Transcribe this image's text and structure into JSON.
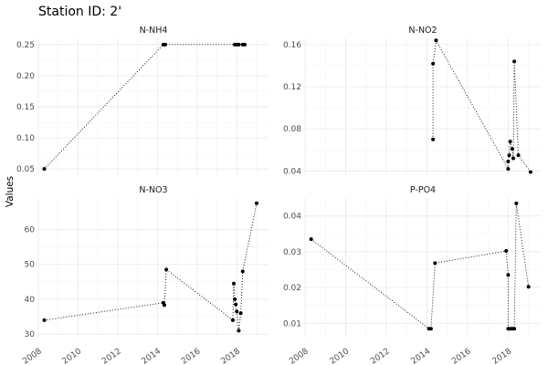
{
  "title": "Station ID: 2'",
  "chart_data": [
    {
      "type": "line",
      "title": "N-NH4",
      "ylabel": "Values",
      "xlim": [
        2008,
        2019.6
      ],
      "ylim": [
        0.04,
        0.26
      ],
      "yticks": [
        0.05,
        0.1,
        0.15,
        0.2,
        0.25
      ],
      "ytick_labels": [
        "0.05",
        "0.10",
        "0.15",
        "0.20",
        "0.25"
      ],
      "grid": true,
      "points": [
        [
          2008.3,
          0.05
        ],
        [
          2014.3,
          0.25
        ],
        [
          2014.4,
          0.25
        ],
        [
          2017.9,
          0.25
        ],
        [
          2018.0,
          0.25
        ],
        [
          2018.1,
          0.25
        ],
        [
          2018.3,
          0.25
        ],
        [
          2018.4,
          0.25
        ]
      ]
    },
    {
      "type": "line",
      "title": "N-NO2",
      "xlim": [
        2008,
        2019.6
      ],
      "ylim": [
        0.036,
        0.166
      ],
      "yticks": [
        0.04,
        0.08,
        0.12,
        0.16
      ],
      "ytick_labels": [
        "0.04",
        "0.08",
        "0.12",
        "0.16"
      ],
      "grid": true,
      "points": [
        [
          2014.3,
          0.07
        ],
        [
          2014.3,
          0.142
        ],
        [
          2014.45,
          0.164
        ],
        [
          2018.0,
          0.042
        ],
        [
          2018.0,
          0.049
        ],
        [
          2018.05,
          0.055
        ],
        [
          2018.1,
          0.068
        ],
        [
          2018.2,
          0.061
        ],
        [
          2018.25,
          0.052
        ],
        [
          2018.3,
          0.144
        ],
        [
          2018.5,
          0.055
        ],
        [
          2019.1,
          0.039
        ]
      ]
    },
    {
      "type": "line",
      "title": "N-NO3",
      "xlim": [
        2008,
        2019.6
      ],
      "ylim": [
        29,
        69
      ],
      "yticks": [
        30,
        40,
        50,
        60
      ],
      "ytick_labels": [
        "30",
        "40",
        "50",
        "60"
      ],
      "grid": true,
      "points": [
        [
          2008.3,
          34
        ],
        [
          2014.3,
          39
        ],
        [
          2014.35,
          38.3
        ],
        [
          2014.45,
          48.5
        ],
        [
          2017.8,
          34
        ],
        [
          2017.85,
          44.5
        ],
        [
          2017.9,
          40
        ],
        [
          2017.95,
          38.5
        ],
        [
          2018.0,
          36.5
        ],
        [
          2018.1,
          31
        ],
        [
          2018.2,
          36
        ],
        [
          2018.3,
          48
        ],
        [
          2019.0,
          67.5
        ]
      ]
    },
    {
      "type": "line",
      "title": "P-PO4",
      "xlim": [
        2008,
        2019.6
      ],
      "ylim": [
        0.006,
        0.045
      ],
      "yticks": [
        0.01,
        0.02,
        0.03,
        0.04
      ],
      "ytick_labels": [
        "0.01",
        "0.02",
        "0.03",
        "0.04"
      ],
      "grid": true,
      "points": [
        [
          2008.3,
          0.0335
        ],
        [
          2014.1,
          0.0085
        ],
        [
          2014.2,
          0.0085
        ],
        [
          2014.4,
          0.0268
        ],
        [
          2017.9,
          0.0302
        ],
        [
          2018.0,
          0.0235
        ],
        [
          2018.0,
          0.0085
        ],
        [
          2018.1,
          0.0085
        ],
        [
          2018.2,
          0.0085
        ],
        [
          2018.3,
          0.0085
        ],
        [
          2018.4,
          0.0435
        ],
        [
          2019.0,
          0.0202
        ]
      ]
    }
  ],
  "xticks": [
    2008,
    2010,
    2012,
    2014,
    2016,
    2018
  ],
  "xtick_labels": [
    "2008",
    "2010",
    "2012",
    "2014",
    "2016",
    "2018"
  ]
}
